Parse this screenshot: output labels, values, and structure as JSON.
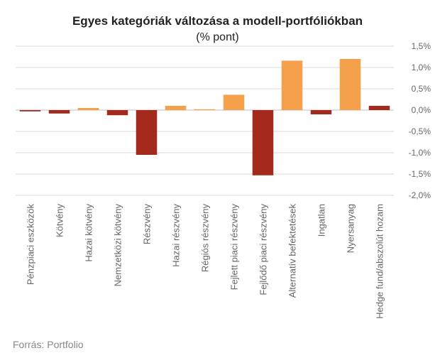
{
  "chart_data": {
    "type": "bar",
    "title": "Egyes kategóriák változása a modell-portfóliókban",
    "subtitle": "(% pont)",
    "categories": [
      "Pénzpiaci eszközök",
      "Kötvény",
      "Hazai kötvény",
      "Nemzetközi kötvény",
      "Részvény",
      "Hazai részvény",
      "Régiós részvény",
      "Fejlett piaci részvény",
      "Fejlődő piaci részvény",
      "Alternatív befektetések",
      "Ingatlan",
      "Nyersanyag",
      "Hedge fund/abszolút hozam"
    ],
    "values": [
      -0.03,
      -0.08,
      0.05,
      -0.12,
      -1.05,
      0.1,
      0.02,
      0.36,
      -1.53,
      1.16,
      -0.1,
      1.2,
      0.1
    ],
    "bar_colors": [
      "#a32a1d",
      "#a32a1d",
      "#f5a04a",
      "#a32a1d",
      "#a32a1d",
      "#f5a04a",
      "#f5a04a",
      "#f5a04a",
      "#a32a1d",
      "#f5a04a",
      "#a32a1d",
      "#f5a04a",
      "#a32a1d"
    ],
    "ylim": [
      -2.0,
      1.5
    ],
    "yticks": [
      1.5,
      1.0,
      0.5,
      0.0,
      -0.5,
      -1.0,
      -1.5,
      -2.0
    ],
    "ytick_labels": [
      "1,5%",
      "1,0%",
      "0,5%",
      "0,0%",
      "-0,5%",
      "-1,0%",
      "-1,5%",
      "-2,0%"
    ],
    "y_axis_position": "right",
    "grid": true,
    "xlabel": "",
    "ylabel": ""
  },
  "source": "Forrás: Portfolio"
}
